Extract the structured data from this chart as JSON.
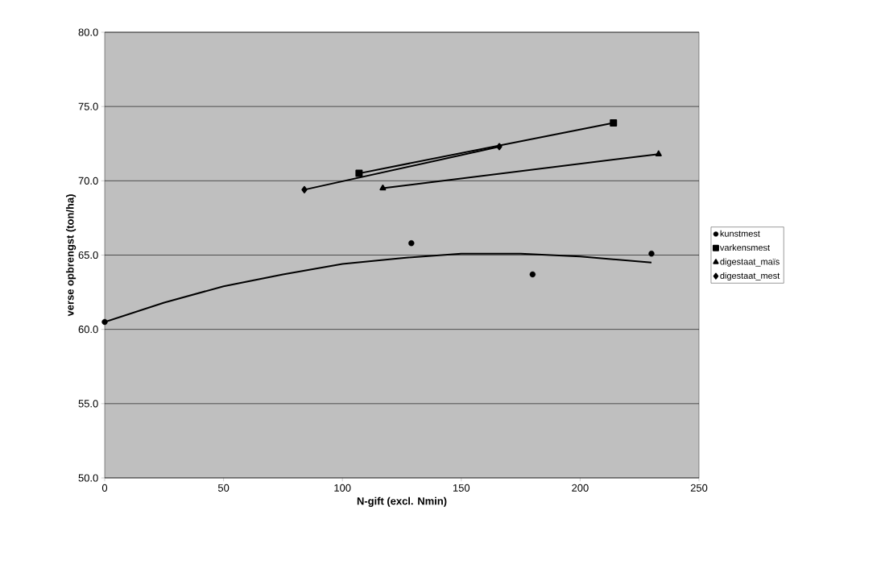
{
  "chart_data": {
    "type": "line",
    "xlabel": "N-gift (excl. Nmin)",
    "ylabel": "verse opbrengst (ton/ha)",
    "xlim": [
      0,
      250
    ],
    "xticks": [
      0,
      50,
      100,
      150,
      200,
      250
    ],
    "ylim": [
      50,
      80
    ],
    "yticks": [
      {
        "value": 50,
        "label": "50.0"
      },
      {
        "value": 55,
        "label": "55.0"
      },
      {
        "value": 60,
        "label": "60.0"
      },
      {
        "value": 65,
        "label": "65.0"
      },
      {
        "value": 70,
        "label": "70.0"
      },
      {
        "value": 75,
        "label": "75.0"
      },
      {
        "value": 80,
        "label": "80.0"
      }
    ],
    "grid": "y",
    "legend": "right",
    "series": [
      {
        "name": "kunstmest",
        "type": "scatter",
        "marker": "circle",
        "color": "#000000",
        "x": [
          0,
          129,
          180,
          230
        ],
        "values": [
          60.5,
          65.8,
          63.7,
          65.1
        ]
      },
      {
        "name": "varkensmest",
        "type": "line",
        "marker": "square",
        "color": "#000000",
        "x": [
          107,
          214
        ],
        "values": [
          70.5,
          73.9
        ]
      },
      {
        "name": "digestaat_maïs",
        "type": "line",
        "marker": "triangle",
        "color": "#000000",
        "x": [
          117,
          233
        ],
        "values": [
          69.5,
          71.8
        ]
      },
      {
        "name": "digestaat_mest",
        "type": "line",
        "marker": "diamond",
        "color": "#000000",
        "x": [
          84,
          166
        ],
        "values": [
          69.4,
          72.3
        ]
      },
      {
        "marker": "none",
        "color": "#000000",
        "x": [
          0,
          25,
          50,
          75,
          100,
          125,
          150,
          175,
          200,
          230
        ],
        "values": [
          60.5,
          61.8,
          62.9,
          63.7,
          64.4,
          64.8,
          65.1,
          65.1,
          64.9,
          64.5
        ]
      }
    ]
  }
}
